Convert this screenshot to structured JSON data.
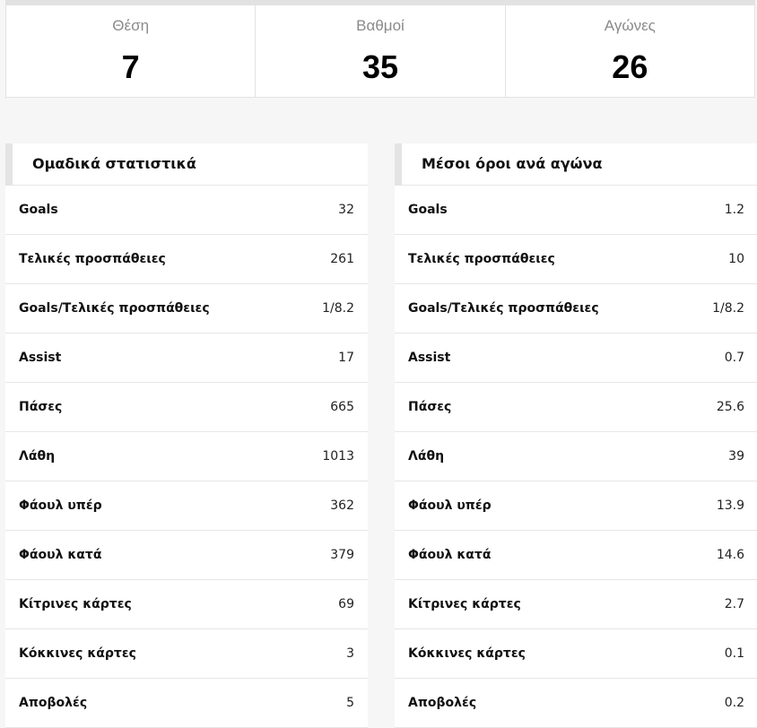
{
  "summary": [
    {
      "label": "Θέση",
      "value": "7"
    },
    {
      "label": "Βαθμοί",
      "value": "35"
    },
    {
      "label": "Αγώνες",
      "value": "26"
    }
  ],
  "team_stats": {
    "title": "Ομαδικά στατιστικά",
    "rows": [
      {
        "label": "Goals",
        "value": "32"
      },
      {
        "label": "Τελικές προσπάθειες",
        "value": "261"
      },
      {
        "label": "Goals/Τελικές προσπάθειες",
        "value": "1/8.2"
      },
      {
        "label": "Assist",
        "value": "17"
      },
      {
        "label": "Πάσες",
        "value": "665"
      },
      {
        "label": "Λάθη",
        "value": "1013"
      },
      {
        "label": "Φάουλ υπέρ",
        "value": "362"
      },
      {
        "label": "Φάουλ κατά",
        "value": "379"
      },
      {
        "label": "Κίτρινες κάρτες",
        "value": "69"
      },
      {
        "label": "Κόκκινες κάρτες",
        "value": "3"
      },
      {
        "label": "Αποβολές",
        "value": "5"
      }
    ]
  },
  "per_game": {
    "title": "Μέσοι όροι ανά αγώνα",
    "rows": [
      {
        "label": "Goals",
        "value": "1.2"
      },
      {
        "label": "Τελικές προσπάθειες",
        "value": "10"
      },
      {
        "label": "Goals/Τελικές προσπάθειες",
        "value": "1/8.2"
      },
      {
        "label": "Assist",
        "value": "0.7"
      },
      {
        "label": "Πάσες",
        "value": "25.6"
      },
      {
        "label": "Λάθη",
        "value": "39"
      },
      {
        "label": "Φάουλ υπέρ",
        "value": "13.9"
      },
      {
        "label": "Φάουλ κατά",
        "value": "14.6"
      },
      {
        "label": "Κίτρινες κάρτες",
        "value": "2.7"
      },
      {
        "label": "Κόκκινες κάρτες",
        "value": "0.1"
      },
      {
        "label": "Αποβολές",
        "value": "0.2"
      }
    ]
  }
}
